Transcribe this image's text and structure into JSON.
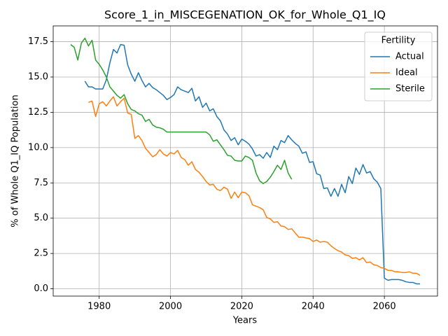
{
  "chart_data": {
    "type": "line",
    "title": "Score_1_in_MISCEGENATION_OK_for_Whole_Q1_IQ",
    "x_label": "Years",
    "y_label": "% of Whole Q1_IQ Population",
    "legend_title": "Fertility",
    "legend": "upper right",
    "grid": true,
    "xlim": [
      1967.1,
      2074.9
    ],
    "ylim": [
      -0.52,
      18.62
    ],
    "xticks": [
      1980,
      2000,
      2020,
      2040,
      2060
    ],
    "yticks": [
      {
        "value": 0,
        "label": "0.0"
      },
      2.5,
      {
        "value": 5,
        "label": "5.0"
      },
      7.5,
      {
        "value": 10,
        "label": "10.0"
      },
      12.5,
      {
        "value": 15,
        "label": "15.0"
      },
      17.5
    ],
    "series": [
      {
        "name": "Actual",
        "color": "#1f77b4",
        "x": [
          1976,
          1977,
          1978,
          1979,
          1980,
          1981,
          1982,
          1983,
          1984,
          1985,
          1986,
          1987,
          1988,
          1989,
          1990,
          1991,
          1992,
          1993,
          1994,
          1995,
          1996,
          1997,
          1998,
          1999,
          2000,
          2001,
          2002,
          2003,
          2004,
          2005,
          2006,
          2007,
          2008,
          2009,
          2010,
          2011,
          2012,
          2013,
          2014,
          2015,
          2016,
          2017,
          2018,
          2019,
          2020,
          2021,
          2022,
          2023,
          2024,
          2025,
          2026,
          2027,
          2028,
          2029,
          2030,
          2031,
          2032,
          2033,
          2034,
          2035,
          2036,
          2037,
          2038,
          2039,
          2040,
          2041,
          2042,
          2043,
          2044,
          2045,
          2046,
          2047,
          2048,
          2049,
          2050,
          2051,
          2052,
          2053,
          2054,
          2055,
          2056,
          2057,
          2058,
          2059,
          2060,
          2061,
          2062,
          2063,
          2064,
          2065,
          2066,
          2067,
          2068,
          2069,
          2070
        ],
        "values": [
          14.7,
          14.3,
          14.3,
          14.15,
          14.15,
          14.15,
          14.8,
          16.0,
          16.95,
          16.7,
          17.3,
          17.25,
          15.85,
          15.2,
          14.7,
          15.3,
          14.75,
          14.3,
          14.55,
          14.25,
          14.1,
          13.9,
          13.7,
          13.4,
          13.55,
          13.75,
          14.3,
          14.1,
          14.0,
          13.9,
          14.2,
          13.3,
          13.6,
          12.85,
          13.15,
          12.6,
          12.75,
          12.2,
          11.9,
          11.25,
          10.95,
          10.5,
          10.7,
          10.2,
          10.6,
          10.45,
          10.25,
          9.9,
          9.4,
          9.5,
          9.25,
          9.65,
          9.3,
          10.1,
          9.85,
          10.5,
          10.35,
          10.85,
          10.55,
          10.3,
          10.1,
          9.6,
          9.7,
          8.95,
          9.0,
          8.15,
          8.05,
          7.1,
          7.15,
          6.55,
          7.1,
          6.55,
          7.4,
          6.8,
          7.95,
          7.45,
          8.55,
          8.1,
          8.8,
          8.2,
          8.3,
          7.8,
          7.55,
          7.1,
          0.75,
          0.6,
          0.65,
          0.65,
          0.65,
          0.6,
          0.5,
          0.45,
          0.45,
          0.35,
          0.35
        ]
      },
      {
        "name": "Ideal",
        "color": "#ff7f0e",
        "x": [
          1977,
          1978,
          1979,
          1980,
          1981,
          1982,
          1983,
          1984,
          1985,
          1986,
          1987,
          1988,
          1989,
          1990,
          1991,
          1992,
          1993,
          1994,
          1995,
          1996,
          1997,
          1998,
          1999,
          2000,
          2001,
          2002,
          2003,
          2004,
          2005,
          2006,
          2007,
          2008,
          2009,
          2010,
          2011,
          2012,
          2013,
          2014,
          2015,
          2016,
          2017,
          2018,
          2019,
          2020,
          2021,
          2022,
          2023,
          2024,
          2025,
          2026,
          2027,
          2028,
          2029,
          2030,
          2031,
          2032,
          2033,
          2034,
          2035,
          2036,
          2037,
          2038,
          2039,
          2040,
          2041,
          2042,
          2043,
          2044,
          2045,
          2046,
          2047,
          2048,
          2049,
          2050,
          2051,
          2052,
          2053,
          2054,
          2055,
          2056,
          2057,
          2058,
          2059,
          2060,
          2061,
          2062,
          2063,
          2064,
          2065,
          2066,
          2067,
          2068,
          2069,
          2070
        ],
        "values": [
          13.2,
          13.3,
          12.2,
          13.1,
          13.25,
          12.95,
          13.3,
          13.6,
          12.95,
          13.25,
          13.5,
          12.45,
          12.35,
          10.65,
          10.85,
          10.5,
          9.95,
          9.65,
          9.35,
          9.5,
          9.85,
          9.55,
          9.4,
          9.65,
          9.55,
          9.8,
          9.3,
          9.15,
          8.75,
          9.0,
          8.45,
          8.25,
          7.95,
          7.6,
          7.35,
          7.4,
          7.05,
          6.95,
          7.2,
          7.05,
          6.4,
          6.85,
          6.45,
          6.85,
          6.8,
          6.6,
          5.95,
          5.85,
          5.75,
          5.6,
          5.05,
          4.95,
          4.7,
          4.75,
          4.45,
          4.4,
          4.2,
          4.25,
          3.95,
          3.65,
          3.65,
          3.6,
          3.55,
          3.35,
          3.45,
          3.3,
          3.35,
          3.3,
          3.05,
          2.85,
          2.7,
          2.6,
          2.4,
          2.35,
          2.15,
          2.2,
          2.05,
          2.2,
          1.85,
          1.9,
          1.7,
          1.65,
          1.5,
          1.45,
          1.3,
          1.3,
          1.2,
          1.2,
          1.15,
          1.15,
          1.2,
          1.1,
          1.1,
          0.95
        ]
      },
      {
        "name": "Sterile",
        "color": "#2ca02c",
        "x": [
          1972,
          1973,
          1974,
          1975,
          1976,
          1977,
          1978,
          1979,
          1980,
          1981,
          1982,
          1983,
          1984,
          1985,
          1986,
          1987,
          1988,
          1989,
          1990,
          1991,
          1992,
          1993,
          1994,
          1995,
          1996,
          1997,
          1998,
          1999,
          2000,
          2001,
          2002,
          2003,
          2004,
          2005,
          2006,
          2007,
          2008,
          2009,
          2010,
          2011,
          2012,
          2013,
          2014,
          2015,
          2016,
          2017,
          2018,
          2019,
          2020,
          2021,
          2022,
          2023,
          2024,
          2025,
          2026,
          2027,
          2028,
          2029,
          2030,
          2031,
          2032,
          2033,
          2034
        ],
        "values": [
          17.3,
          17.1,
          16.2,
          17.4,
          17.75,
          17.2,
          17.6,
          16.2,
          15.9,
          15.5,
          15.0,
          14.3,
          14.0,
          13.7,
          13.5,
          13.75,
          13.1,
          12.7,
          12.6,
          12.4,
          12.3,
          11.85,
          12.0,
          11.6,
          11.45,
          11.4,
          11.3,
          11.1,
          11.1,
          11.1,
          11.1,
          11.1,
          11.1,
          11.1,
          11.1,
          11.1,
          11.1,
          11.1,
          11.1,
          10.9,
          10.45,
          10.55,
          10.2,
          9.85,
          9.45,
          9.4,
          9.1,
          9.05,
          9.05,
          9.4,
          9.3,
          9.1,
          8.2,
          7.65,
          7.45,
          7.6,
          7.9,
          8.3,
          8.75,
          8.45,
          9.1,
          8.2,
          7.75
        ]
      }
    ]
  }
}
